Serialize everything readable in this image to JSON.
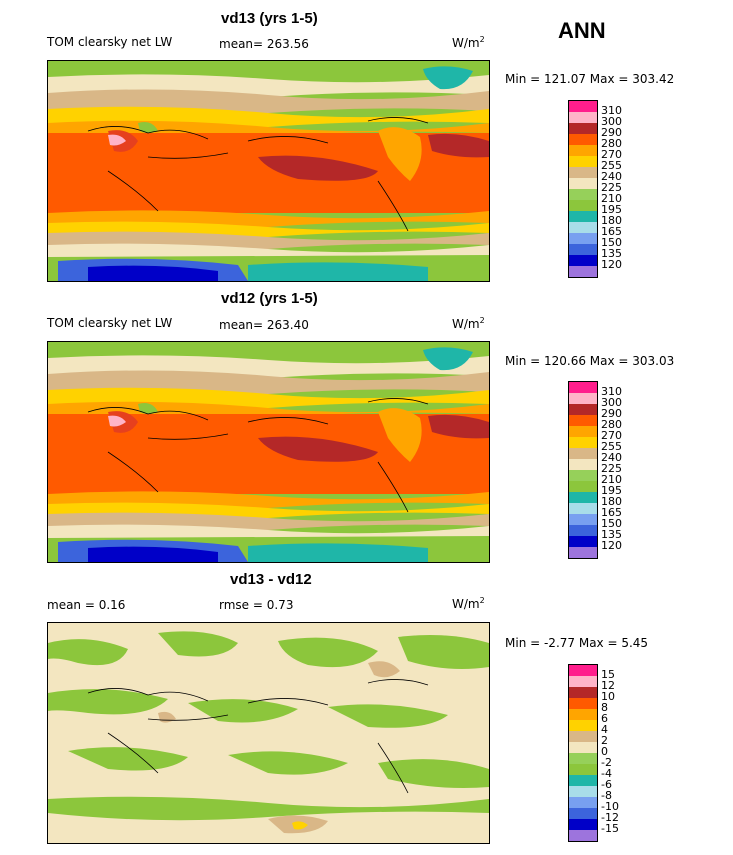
{
  "season": "ANN",
  "colors": {
    "abs_scale": [
      "#9d74dd",
      "#0000c8",
      "#3c64dc",
      "#78a0f0",
      "#a8dde9",
      "#1fb6a8",
      "#8cc63c",
      "#96d05a",
      "#f3e6c0",
      "#d9b787",
      "#ffd200",
      "#ffa500",
      "#ff5a00",
      "#e6401e",
      "#b42828",
      "#ffb4c8",
      "#ff1e8c"
    ],
    "diff_scale": [
      "#9d74dd",
      "#0000c8",
      "#3c64dc",
      "#78a0f0",
      "#a8dde9",
      "#1fb6a8",
      "#8cc63c",
      "#96d05a",
      "#f3e6c0",
      "#d9b787",
      "#ffd200",
      "#ffa500",
      "#ff5a00",
      "#e6401e",
      "#b42828",
      "#ffb4c8",
      "#ff1e8c"
    ]
  },
  "chart_data": [
    {
      "type": "heatmap",
      "title": "vd13 (yrs 1-5)",
      "left_label": "TOM clearsky net LW",
      "mean_label": "mean=  263.56",
      "units": "W/m",
      "units_exp": "2",
      "minmax": "Min = 121.07 Max = 303.42",
      "levels": [
        "310",
        "300",
        "290",
        "280",
        "270",
        "255",
        "240",
        "225",
        "210",
        "195",
        "180",
        "165",
        "150",
        "135",
        "120"
      ]
    },
    {
      "type": "heatmap",
      "title": "vd12 (yrs 1-5)",
      "left_label": "TOM clearsky net LW",
      "mean_label": "mean=  263.40",
      "units": "W/m",
      "units_exp": "2",
      "minmax": "Min = 120.66 Max = 303.03",
      "levels": [
        "310",
        "300",
        "290",
        "280",
        "270",
        "255",
        "240",
        "225",
        "210",
        "195",
        "180",
        "165",
        "150",
        "135",
        "120"
      ]
    },
    {
      "type": "heatmap",
      "title": "vd13 - vd12",
      "left_label": "mean =    0.16",
      "mean_label": "rmse =    0.73",
      "units": "W/m",
      "units_exp": "2",
      "minmax": "Min =   -2.77 Max =    5.45",
      "levels": [
        "15",
        "12",
        "10",
        "8",
        "6",
        "4",
        "2",
        "0",
        "-2",
        "-4",
        "-6",
        "-8",
        "-10",
        "-12",
        "-15"
      ]
    }
  ]
}
